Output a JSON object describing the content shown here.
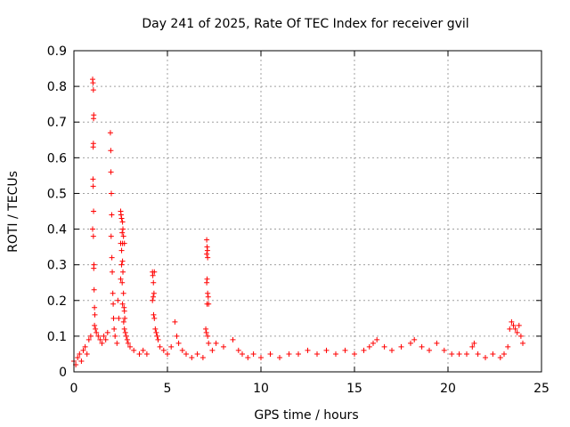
{
  "chart_data": {
    "type": "scatter",
    "title": "Day 241 of 2025, Rate Of TEC Index for receiver gvil",
    "xlabel": "GPS time / hours",
    "ylabel": "ROTI / TECUs",
    "xlim": [
      0,
      25
    ],
    "ylim": [
      0,
      0.9
    ],
    "xticks": [
      "0",
      "5",
      "10",
      "15",
      "20",
      "25"
    ],
    "yticks": [
      "0",
      "0.1",
      "0.2",
      "0.3",
      "0.4",
      "0.5",
      "0.6",
      "0.7",
      "0.8",
      "0.9"
    ],
    "grid": true,
    "marker": "+",
    "color": "#ff0000",
    "series": [
      {
        "name": "ROTI",
        "points": [
          [
            0.0,
            0.03
          ],
          [
            0.1,
            0.02
          ],
          [
            0.2,
            0.04
          ],
          [
            0.3,
            0.05
          ],
          [
            0.4,
            0.03
          ],
          [
            0.5,
            0.06
          ],
          [
            0.6,
            0.07
          ],
          [
            0.7,
            0.05
          ],
          [
            0.8,
            0.09
          ],
          [
            0.9,
            0.1
          ],
          [
            1.0,
            0.82
          ],
          [
            1.02,
            0.81
          ],
          [
            1.04,
            0.79
          ],
          [
            1.06,
            0.72
          ],
          [
            1.05,
            0.71
          ],
          [
            1.03,
            0.63
          ],
          [
            1.04,
            0.64
          ],
          [
            1.02,
            0.54
          ],
          [
            1.03,
            0.52
          ],
          [
            1.05,
            0.45
          ],
          [
            1.0,
            0.4
          ],
          [
            1.04,
            0.38
          ],
          [
            1.06,
            0.29
          ],
          [
            1.07,
            0.3
          ],
          [
            1.08,
            0.23
          ],
          [
            1.1,
            0.18
          ],
          [
            1.12,
            0.16
          ],
          [
            1.1,
            0.13
          ],
          [
            1.15,
            0.12
          ],
          [
            1.2,
            0.11
          ],
          [
            1.3,
            0.1
          ],
          [
            1.4,
            0.09
          ],
          [
            1.5,
            0.08
          ],
          [
            1.6,
            0.1
          ],
          [
            1.7,
            0.09
          ],
          [
            1.8,
            0.11
          ],
          [
            1.95,
            0.67
          ],
          [
            1.97,
            0.62
          ],
          [
            1.98,
            0.56
          ],
          [
            2.0,
            0.5
          ],
          [
            2.02,
            0.44
          ],
          [
            1.99,
            0.38
          ],
          [
            2.03,
            0.32
          ],
          [
            2.05,
            0.28
          ],
          [
            2.08,
            0.22
          ],
          [
            2.1,
            0.19
          ],
          [
            2.12,
            0.15
          ],
          [
            2.15,
            0.12
          ],
          [
            2.2,
            0.1
          ],
          [
            2.3,
            0.08
          ],
          [
            2.35,
            0.2
          ],
          [
            2.4,
            0.15
          ],
          [
            2.5,
            0.45
          ],
          [
            2.52,
            0.44
          ],
          [
            2.55,
            0.43
          ],
          [
            2.6,
            0.42
          ],
          [
            2.62,
            0.4
          ],
          [
            2.58,
            0.39
          ],
          [
            2.65,
            0.38
          ],
          [
            2.5,
            0.36
          ],
          [
            2.6,
            0.36
          ],
          [
            2.7,
            0.36
          ],
          [
            2.55,
            0.34
          ],
          [
            2.6,
            0.31
          ],
          [
            2.55,
            0.3
          ],
          [
            2.62,
            0.28
          ],
          [
            2.5,
            0.26
          ],
          [
            2.58,
            0.25
          ],
          [
            2.65,
            0.22
          ],
          [
            2.6,
            0.19
          ],
          [
            2.68,
            0.18
          ],
          [
            2.7,
            0.17
          ],
          [
            2.72,
            0.15
          ],
          [
            2.66,
            0.14
          ],
          [
            2.7,
            0.12
          ],
          [
            2.75,
            0.11
          ],
          [
            2.8,
            0.1
          ],
          [
            2.85,
            0.09
          ],
          [
            2.9,
            0.08
          ],
          [
            3.0,
            0.07
          ],
          [
            3.2,
            0.06
          ],
          [
            3.5,
            0.05
          ],
          [
            3.7,
            0.06
          ],
          [
            3.9,
            0.05
          ],
          [
            4.2,
            0.28
          ],
          [
            4.22,
            0.27
          ],
          [
            4.25,
            0.25
          ],
          [
            4.3,
            0.28
          ],
          [
            4.28,
            0.22
          ],
          [
            4.24,
            0.21
          ],
          [
            4.2,
            0.2
          ],
          [
            4.26,
            0.16
          ],
          [
            4.3,
            0.15
          ],
          [
            4.35,
            0.12
          ],
          [
            4.4,
            0.11
          ],
          [
            4.45,
            0.1
          ],
          [
            4.5,
            0.09
          ],
          [
            4.6,
            0.07
          ],
          [
            4.8,
            0.06
          ],
          [
            5.0,
            0.05
          ],
          [
            5.2,
            0.07
          ],
          [
            5.4,
            0.14
          ],
          [
            5.5,
            0.1
          ],
          [
            5.6,
            0.08
          ],
          [
            5.8,
            0.06
          ],
          [
            6.0,
            0.05
          ],
          [
            6.3,
            0.04
          ],
          [
            6.6,
            0.05
          ],
          [
            6.9,
            0.04
          ],
          [
            7.1,
            0.37
          ],
          [
            7.12,
            0.35
          ],
          [
            7.14,
            0.34
          ],
          [
            7.1,
            0.33
          ],
          [
            7.15,
            0.32
          ],
          [
            7.12,
            0.26
          ],
          [
            7.1,
            0.25
          ],
          [
            7.15,
            0.22
          ],
          [
            7.18,
            0.21
          ],
          [
            7.12,
            0.19
          ],
          [
            7.2,
            0.19
          ],
          [
            7.05,
            0.12
          ],
          [
            7.08,
            0.11
          ],
          [
            7.15,
            0.1
          ],
          [
            7.2,
            0.08
          ],
          [
            7.4,
            0.06
          ],
          [
            7.6,
            0.08
          ],
          [
            8.0,
            0.07
          ],
          [
            8.5,
            0.09
          ],
          [
            8.8,
            0.06
          ],
          [
            9.0,
            0.05
          ],
          [
            9.3,
            0.04
          ],
          [
            9.6,
            0.05
          ],
          [
            10.0,
            0.04
          ],
          [
            10.5,
            0.05
          ],
          [
            11.0,
            0.04
          ],
          [
            11.5,
            0.05
          ],
          [
            12.0,
            0.05
          ],
          [
            12.5,
            0.06
          ],
          [
            13.0,
            0.05
          ],
          [
            13.5,
            0.06
          ],
          [
            14.0,
            0.05
          ],
          [
            14.5,
            0.06
          ],
          [
            15.0,
            0.05
          ],
          [
            15.5,
            0.06
          ],
          [
            15.8,
            0.07
          ],
          [
            16.0,
            0.08
          ],
          [
            16.2,
            0.09
          ],
          [
            16.6,
            0.07
          ],
          [
            17.0,
            0.06
          ],
          [
            17.5,
            0.07
          ],
          [
            18.0,
            0.08
          ],
          [
            18.2,
            0.09
          ],
          [
            18.6,
            0.07
          ],
          [
            19.0,
            0.06
          ],
          [
            19.4,
            0.08
          ],
          [
            19.8,
            0.06
          ],
          [
            20.2,
            0.05
          ],
          [
            20.6,
            0.05
          ],
          [
            21.0,
            0.05
          ],
          [
            21.3,
            0.07
          ],
          [
            21.4,
            0.08
          ],
          [
            21.6,
            0.05
          ],
          [
            22.0,
            0.04
          ],
          [
            22.4,
            0.05
          ],
          [
            22.8,
            0.04
          ],
          [
            23.0,
            0.05
          ],
          [
            23.2,
            0.07
          ],
          [
            23.3,
            0.12
          ],
          [
            23.4,
            0.14
          ],
          [
            23.5,
            0.13
          ],
          [
            23.6,
            0.12
          ],
          [
            23.7,
            0.11
          ],
          [
            23.8,
            0.13
          ],
          [
            23.9,
            0.1
          ],
          [
            24.0,
            0.08
          ]
        ]
      }
    ]
  }
}
